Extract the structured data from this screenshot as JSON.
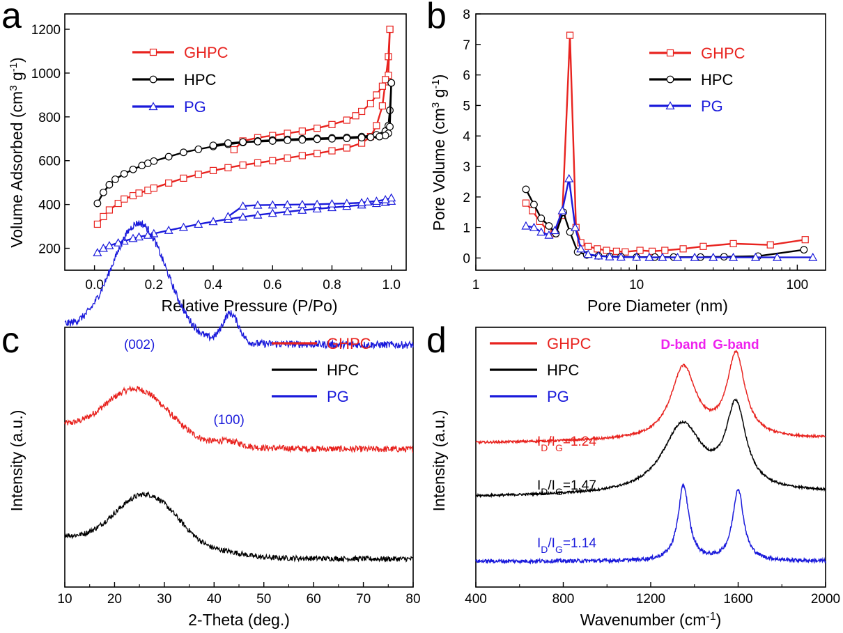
{
  "figure": {
    "panels": [
      "a",
      "b",
      "c",
      "d"
    ]
  },
  "colors": {
    "GHPC": "#e8231f",
    "HPC": "#000000",
    "PG": "#1a1adb",
    "band": "#ee22ee"
  },
  "chart_data": [
    {
      "panel": "a",
      "type": "line",
      "xlabel": "Relative Pressure (P/Po)",
      "ylabel": "Volume Adsorbed (cm3 g-1)",
      "ylabel_parts": {
        "main": "Volume Adsorbed (cm",
        "sup1": "3",
        "mid": " g",
        "sup2": "-1",
        "end": ")"
      },
      "xlim": [
        -0.1,
        1.05
      ],
      "ylim": [
        100,
        1270
      ],
      "xticks": [
        0.0,
        0.2,
        0.4,
        0.6,
        0.8,
        1.0
      ],
      "xtick_labels": [
        "0.0",
        "0.2",
        "0.4",
        "0.6",
        "0.8",
        "1.0"
      ],
      "yticks": [
        200,
        400,
        600,
        800,
        1000,
        1200
      ],
      "ytick_labels": [
        "200",
        "400",
        "600",
        "800",
        "1000",
        "1200"
      ],
      "legend_position": "top-left",
      "series": [
        {
          "name": "GHPC",
          "marker": "square",
          "adsorption": [
            [
              0.01,
              310
            ],
            [
              0.03,
              345
            ],
            [
              0.05,
              375
            ],
            [
              0.08,
              405
            ],
            [
              0.1,
              425
            ],
            [
              0.13,
              440
            ],
            [
              0.15,
              452
            ],
            [
              0.18,
              465
            ],
            [
              0.2,
              475
            ],
            [
              0.25,
              498
            ],
            [
              0.3,
              520
            ],
            [
              0.35,
              538
            ],
            [
              0.4,
              555
            ],
            [
              0.45,
              568
            ],
            [
              0.5,
              580
            ],
            [
              0.55,
              590
            ],
            [
              0.6,
              600
            ],
            [
              0.65,
              612
            ],
            [
              0.7,
              623
            ],
            [
              0.75,
              633
            ],
            [
              0.8,
              645
            ],
            [
              0.85,
              658
            ],
            [
              0.9,
              680
            ],
            [
              0.93,
              710
            ],
            [
              0.95,
              760
            ],
            [
              0.97,
              850
            ],
            [
              0.98,
              960
            ],
            [
              0.99,
              1075
            ],
            [
              0.995,
              1200
            ]
          ],
          "desorption": [
            [
              0.995,
              1200
            ],
            [
              0.99,
              990
            ],
            [
              0.98,
              970
            ],
            [
              0.97,
              940
            ],
            [
              0.95,
              900
            ],
            [
              0.93,
              860
            ],
            [
              0.9,
              825
            ],
            [
              0.88,
              805
            ],
            [
              0.85,
              785
            ],
            [
              0.8,
              765
            ],
            [
              0.75,
              748
            ],
            [
              0.7,
              735
            ],
            [
              0.65,
              725
            ],
            [
              0.6,
              715
            ],
            [
              0.55,
              705
            ],
            [
              0.5,
              690
            ],
            [
              0.47,
              650
            ]
          ]
        },
        {
          "name": "HPC",
          "marker": "circle",
          "adsorption": [
            [
              0.01,
              405
            ],
            [
              0.03,
              455
            ],
            [
              0.05,
              490
            ],
            [
              0.07,
              515
            ],
            [
              0.1,
              540
            ],
            [
              0.13,
              560
            ],
            [
              0.16,
              578
            ],
            [
              0.18,
              588
            ],
            [
              0.2,
              598
            ],
            [
              0.25,
              618
            ],
            [
              0.3,
              638
            ],
            [
              0.35,
              652
            ],
            [
              0.4,
              665
            ],
            [
              0.45,
              675
            ],
            [
              0.5,
              683
            ],
            [
              0.55,
              690
            ],
            [
              0.6,
              694
            ],
            [
              0.65,
              697
            ],
            [
              0.7,
              700
            ],
            [
              0.75,
              702
            ],
            [
              0.8,
              704
            ],
            [
              0.85,
              706
            ],
            [
              0.9,
              710
            ],
            [
              0.95,
              718
            ],
            [
              0.98,
              735
            ],
            [
              0.99,
              760
            ],
            [
              0.995,
              830
            ],
            [
              1.0,
              955
            ]
          ],
          "desorption": [
            [
              1.0,
              955
            ],
            [
              0.995,
              755
            ],
            [
              0.99,
              725
            ],
            [
              0.98,
              715
            ],
            [
              0.96,
              710
            ],
            [
              0.93,
              707
            ],
            [
              0.9,
              705
            ],
            [
              0.85,
              702
            ],
            [
              0.8,
              700
            ],
            [
              0.75,
              698
            ],
            [
              0.7,
              695
            ],
            [
              0.65,
              693
            ],
            [
              0.6,
              690
            ],
            [
              0.55,
              687
            ],
            [
              0.5,
              685
            ],
            [
              0.45,
              680
            ],
            [
              0.4,
              670
            ]
          ]
        },
        {
          "name": "PG",
          "marker": "triangle",
          "adsorption": [
            [
              0.01,
              180
            ],
            [
              0.03,
              200
            ],
            [
              0.05,
              212
            ],
            [
              0.08,
              225
            ],
            [
              0.1,
              233
            ],
            [
              0.13,
              245
            ],
            [
              0.15,
              252
            ],
            [
              0.18,
              260
            ],
            [
              0.2,
              267
            ],
            [
              0.25,
              282
            ],
            [
              0.3,
              296
            ],
            [
              0.35,
              310
            ],
            [
              0.4,
              322
            ],
            [
              0.45,
              333
            ],
            [
              0.5,
              343
            ],
            [
              0.55,
              352
            ],
            [
              0.6,
              360
            ],
            [
              0.65,
              367
            ],
            [
              0.7,
              374
            ],
            [
              0.75,
              380
            ],
            [
              0.8,
              386
            ],
            [
              0.85,
              392
            ],
            [
              0.9,
              398
            ],
            [
              0.95,
              405
            ],
            [
              0.98,
              410
            ],
            [
              1.0,
              415
            ]
          ],
          "desorption": [
            [
              1.0,
              430
            ],
            [
              0.98,
              422
            ],
            [
              0.95,
              415
            ],
            [
              0.92,
              412
            ],
            [
              0.9,
              408
            ],
            [
              0.85,
              405
            ],
            [
              0.8,
              403
            ],
            [
              0.75,
              401
            ],
            [
              0.7,
              400
            ],
            [
              0.65,
              399
            ],
            [
              0.6,
              398
            ],
            [
              0.55,
              397
            ],
            [
              0.5,
              393
            ],
            [
              0.45,
              345
            ]
          ]
        }
      ]
    },
    {
      "panel": "b",
      "type": "line",
      "xscale": "log",
      "xlabel": "Pore Diameter (nm)",
      "ylabel": "Pore Volume (cm3 g-1)",
      "ylabel_parts": {
        "main": "Pore Volume (cm",
        "sup1": "3",
        "mid": " g",
        "sup2": "-1",
        "end": ")"
      },
      "xlim": [
        1,
        150
      ],
      "ylim": [
        -0.4,
        8
      ],
      "xticks": [
        1,
        10,
        100
      ],
      "xtick_labels": [
        "1",
        "10",
        "100"
      ],
      "yticks": [
        0,
        1,
        2,
        3,
        4,
        5,
        6,
        7,
        8
      ],
      "ytick_labels": [
        "0",
        "1",
        "2",
        "3",
        "4",
        "5",
        "6",
        "7",
        "8"
      ],
      "legend_position": "top-right",
      "series": [
        {
          "name": "GHPC",
          "marker": "square",
          "points": [
            [
              2.05,
              1.8
            ],
            [
              2.25,
              1.55
            ],
            [
              2.5,
              1.2
            ],
            [
              2.8,
              0.9
            ],
            [
              3.1,
              0.8
            ],
            [
              3.45,
              1.4
            ],
            [
              3.85,
              7.3
            ],
            [
              4.2,
              1.0
            ],
            [
              4.5,
              0.5
            ],
            [
              5.0,
              0.38
            ],
            [
              5.7,
              0.3
            ],
            [
              6.5,
              0.25
            ],
            [
              7.5,
              0.22
            ],
            [
              8.5,
              0.2
            ],
            [
              10.5,
              0.25
            ],
            [
              12.5,
              0.22
            ],
            [
              15,
              0.25
            ],
            [
              19.5,
              0.3
            ],
            [
              26,
              0.38
            ],
            [
              40,
              0.47
            ],
            [
              68,
              0.43
            ],
            [
              112,
              0.6
            ]
          ]
        },
        {
          "name": "HPC",
          "marker": "circle",
          "points": [
            [
              2.05,
              2.25
            ],
            [
              2.3,
              1.75
            ],
            [
              2.55,
              1.3
            ],
            [
              2.85,
              1.05
            ],
            [
              3.15,
              0.8
            ],
            [
              3.5,
              1.5
            ],
            [
              3.85,
              0.85
            ],
            [
              4.3,
              0.2
            ],
            [
              4.9,
              0.1
            ],
            [
              5.8,
              0.07
            ],
            [
              6.8,
              0.05
            ],
            [
              8,
              0.04
            ],
            [
              10,
              0.03
            ],
            [
              13,
              0.03
            ],
            [
              17,
              0.03
            ],
            [
              25,
              0.03
            ],
            [
              35,
              0.04
            ],
            [
              57,
              0.06
            ],
            [
              110,
              0.27
            ]
          ]
        },
        {
          "name": "PG",
          "marker": "triangle",
          "points": [
            [
              2.05,
              1.05
            ],
            [
              2.3,
              1.0
            ],
            [
              2.55,
              0.85
            ],
            [
              2.85,
              0.75
            ],
            [
              3.1,
              0.9
            ],
            [
              3.45,
              1.55
            ],
            [
              3.8,
              2.6
            ],
            [
              4.15,
              1.0
            ],
            [
              4.5,
              0.3
            ],
            [
              5.0,
              0.12
            ],
            [
              5.8,
              0.07
            ],
            [
              6.8,
              0.04
            ],
            [
              8,
              0.03
            ],
            [
              10,
              0.03
            ],
            [
              12,
              0.02
            ],
            [
              14.5,
              0.02
            ],
            [
              18,
              0.02
            ],
            [
              23,
              0.02
            ],
            [
              30,
              0.02
            ],
            [
              40,
              0.02
            ],
            [
              55,
              0.02
            ],
            [
              75,
              0.02
            ],
            [
              125,
              0.02
            ]
          ]
        }
      ]
    },
    {
      "panel": "c",
      "type": "line",
      "xlabel": "2-Theta (deg.)",
      "ylabel": "Intensity (a.u.)",
      "xlim": [
        10,
        80
      ],
      "xticks": [
        10,
        20,
        30,
        40,
        50,
        60,
        70,
        80
      ],
      "xtick_labels": [
        "10",
        "20",
        "30",
        "40",
        "50",
        "60",
        "70",
        "80"
      ],
      "legend_position": "top-right",
      "annotations": [
        {
          "text": "(002)",
          "x": 25,
          "series": "PG"
        },
        {
          "text": "(100)",
          "x": 43,
          "series": "PG"
        }
      ],
      "series": [
        {
          "name": "GHPC",
          "offset": 1.0,
          "baseline": 0.05,
          "peaks": [
            [
              24.5,
              0.5,
              6.5
            ],
            [
              43,
              0.05,
              2.5
            ]
          ],
          "decay": 0.35,
          "noise": 0.06
        },
        {
          "name": "HPC",
          "offset": 0.0,
          "baseline": 0.0,
          "peaks": [
            [
              26.5,
              0.55,
              6.5
            ],
            [
              43.5,
              0.03,
              3
            ]
          ],
          "decay": 0.35,
          "noise": 0.05
        },
        {
          "name": "PG",
          "offset": 1.95,
          "baseline": 0.1,
          "peaks": [
            [
              25,
              1.1,
              5.5
            ],
            [
              43.3,
              0.28,
              1.6
            ]
          ],
          "decay": 0.3,
          "noise": 0.07
        }
      ]
    },
    {
      "panel": "d",
      "type": "line",
      "xlabel": "Wavenumber (cm-1)",
      "xlabel_parts": {
        "main": "Wavenumber (cm",
        "sup": "-1",
        "end": ")"
      },
      "ylabel": "Intensity (a.u.)",
      "xlim": [
        400,
        2000
      ],
      "xticks": [
        400,
        800,
        1200,
        1600,
        2000
      ],
      "xtick_labels": [
        "400",
        "800",
        "1200",
        "1600",
        "2000"
      ],
      "legend_position": "top-left",
      "band_labels": [
        {
          "text": "D-band",
          "x": 1350
        },
        {
          "text": "G-band",
          "x": 1590
        }
      ],
      "ratio_labels": [
        {
          "series": "GHPC",
          "prefix": "I",
          "sub1": "D",
          "slash": "/I",
          "sub2": "G",
          "value": "=1.24"
        },
        {
          "series": "HPC",
          "prefix": "I",
          "sub1": "D",
          "slash": "/I",
          "sub2": "G",
          "value": "=1.47"
        },
        {
          "series": "PG",
          "prefix": "I",
          "sub1": "D",
          "slash": "/I",
          "sub2": "G",
          "value": "=1.14"
        }
      ],
      "series": [
        {
          "name": "GHPC",
          "offset": 1.65,
          "baseline": 0.0,
          "rise": 0.03,
          "peaks": [
            [
              1350,
              1.0,
              70
            ],
            [
              1590,
              1.15,
              50
            ]
          ],
          "noise": 0.03
        },
        {
          "name": "HPC",
          "offset": 0.9,
          "baseline": 0.0,
          "rise": 0.03,
          "peaks": [
            [
              1345,
              0.95,
              110
            ],
            [
              1590,
              1.15,
              55
            ]
          ],
          "noise": 0.03
        },
        {
          "name": "PG",
          "offset": 0.0,
          "baseline": 0.0,
          "rise": 0.0,
          "peaks": [
            [
              1350,
              1.05,
              30
            ],
            [
              1600,
              1.0,
              30
            ]
          ],
          "noise": 0.05
        }
      ]
    }
  ]
}
